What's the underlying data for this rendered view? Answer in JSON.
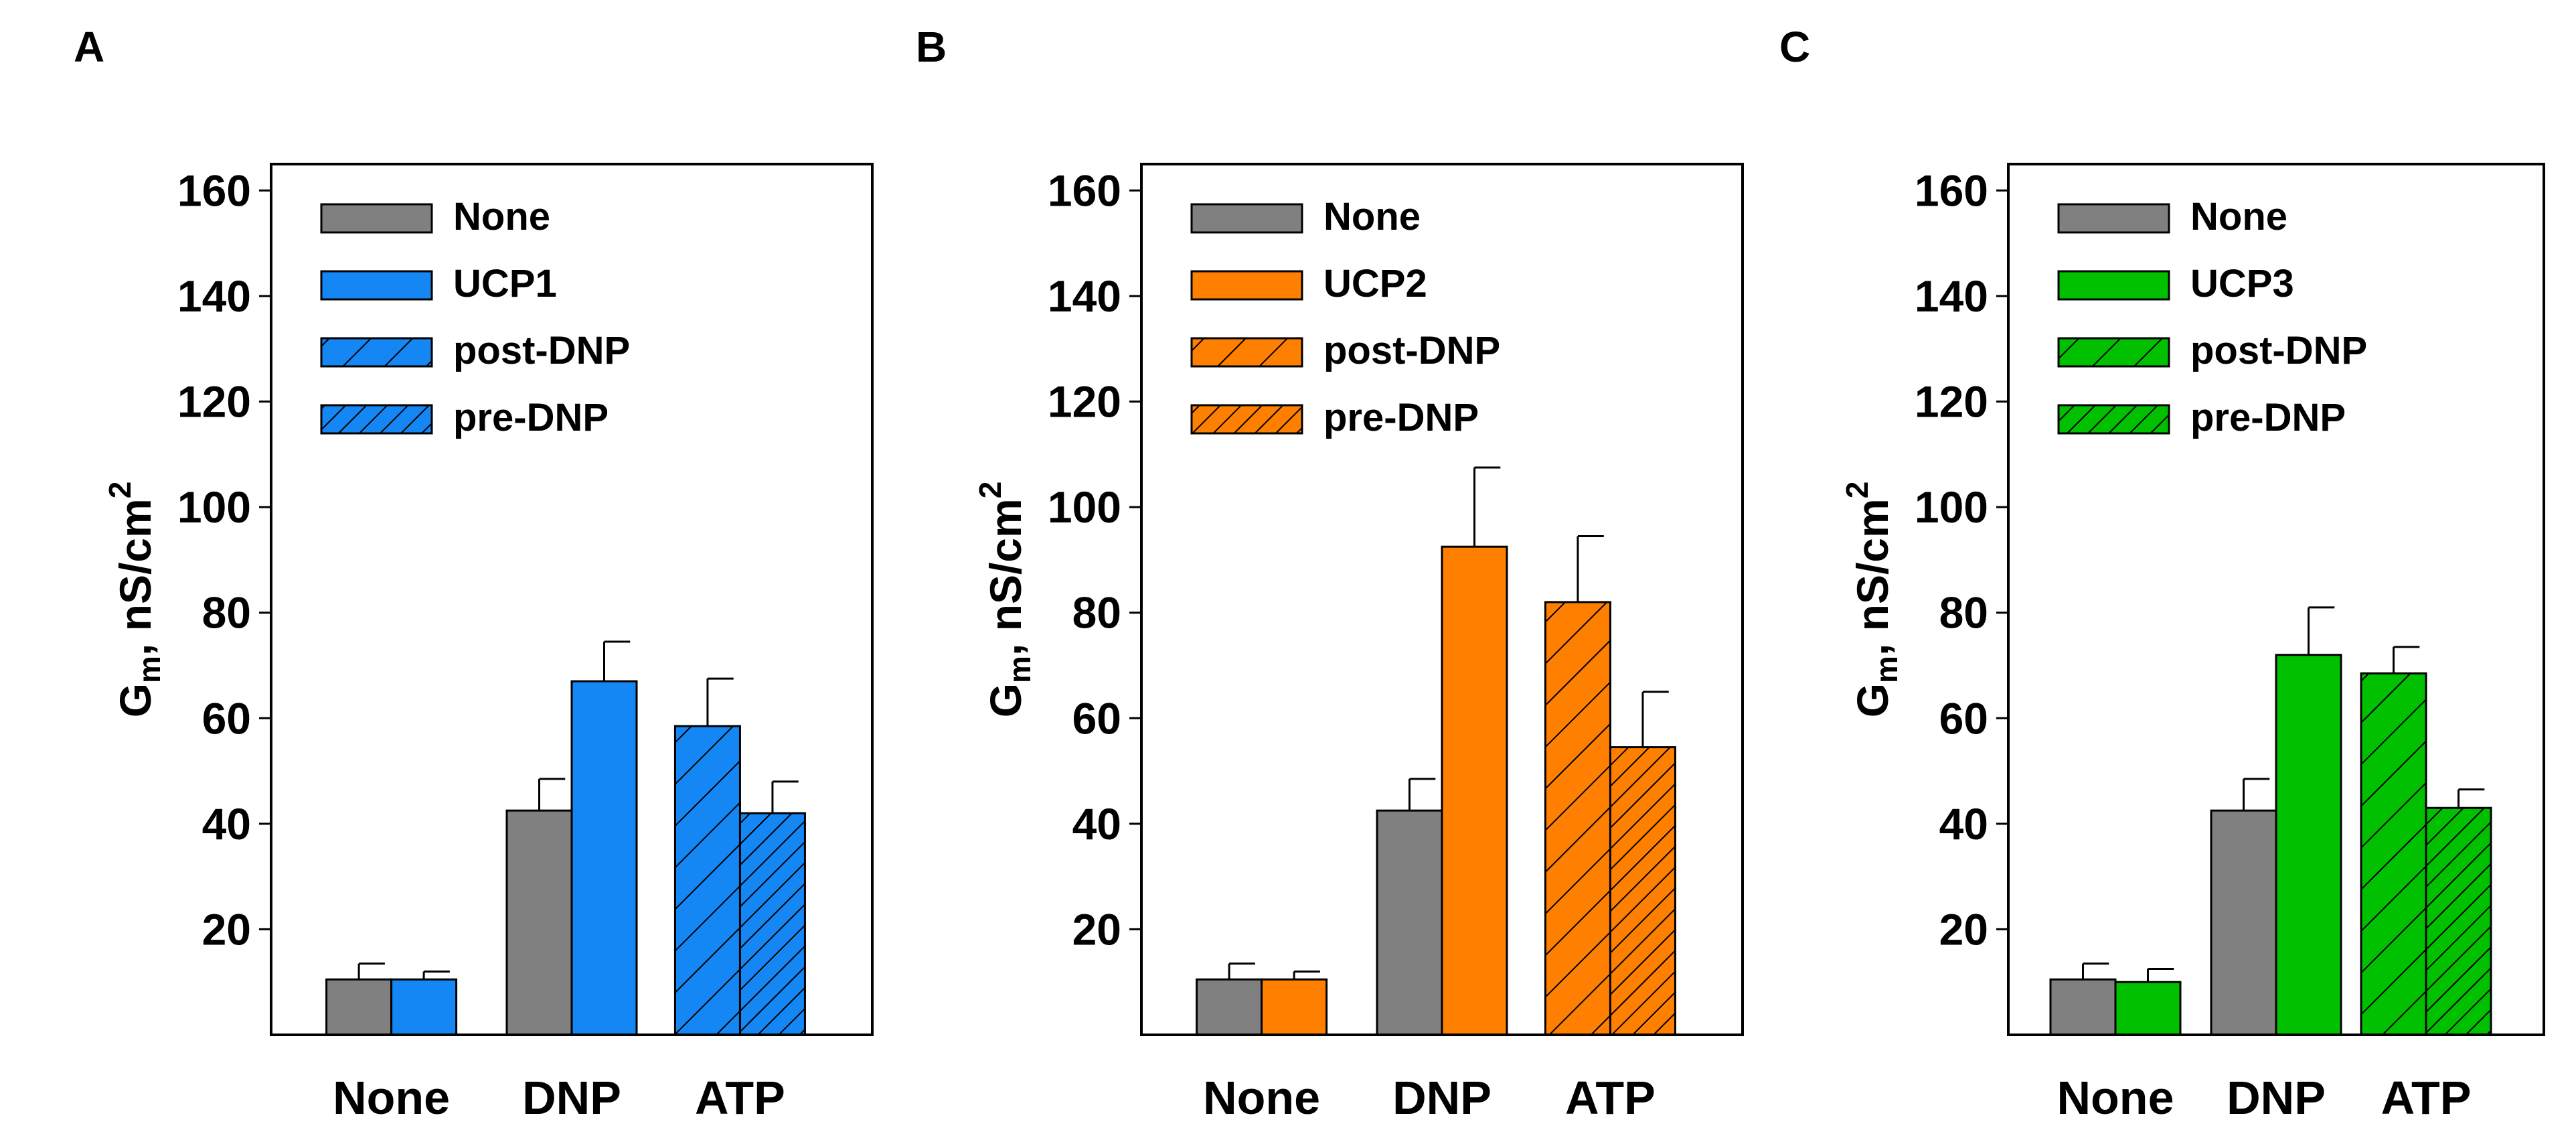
{
  "chart_data": [
    {
      "type": "bar",
      "panel": "A",
      "accent": "#1487f5",
      "title": "",
      "xlabel": "",
      "ylabel": {
        "main": "G",
        "sub": "m",
        "rest": ", nS/cm",
        "sup": "2"
      },
      "yticks": [
        20,
        40,
        60,
        80,
        100,
        120,
        140,
        160
      ],
      "ylim": [
        0,
        165
      ],
      "categories": [
        "None",
        "DNP",
        "ATP"
      ],
      "legend": [
        {
          "label": "None",
          "pattern": "solid",
          "color": "#808080"
        },
        {
          "label": "UCP1",
          "pattern": "solid",
          "color": "#1487f5"
        },
        {
          "label": "post-DNP",
          "pattern": "sparse-hatch",
          "color": "#1487f5"
        },
        {
          "label": "pre-DNP",
          "pattern": "dense-hatch",
          "color": "#1487f5"
        }
      ],
      "bars": [
        {
          "category": "None",
          "series": "None",
          "value": 10.5,
          "error": 3,
          "pattern": "solid",
          "color": "#808080"
        },
        {
          "category": "None",
          "series": "UCP1",
          "value": 10.5,
          "error": 1.5,
          "pattern": "solid",
          "color": "#1487f5"
        },
        {
          "category": "DNP",
          "series": "None",
          "value": 42.5,
          "error": 6,
          "pattern": "solid",
          "color": "#808080"
        },
        {
          "category": "DNP",
          "series": "UCP1",
          "value": 67,
          "error": 7.5,
          "pattern": "solid",
          "color": "#1487f5"
        },
        {
          "category": "ATP",
          "series": "post-DNP",
          "value": 58.5,
          "error": 9,
          "pattern": "sparse-hatch",
          "color": "#1487f5"
        },
        {
          "category": "ATP",
          "series": "pre-DNP",
          "value": 42,
          "error": 6,
          "pattern": "dense-hatch",
          "color": "#1487f5"
        }
      ]
    },
    {
      "type": "bar",
      "panel": "B",
      "accent": "#ff8000",
      "title": "",
      "xlabel": "",
      "ylabel": {
        "main": "G",
        "sub": "m",
        "rest": ", nS/cm",
        "sup": "2"
      },
      "yticks": [
        20,
        40,
        60,
        80,
        100,
        120,
        140,
        160
      ],
      "ylim": [
        0,
        165
      ],
      "categories": [
        "None",
        "DNP",
        "ATP"
      ],
      "legend": [
        {
          "label": "None",
          "pattern": "solid",
          "color": "#808080"
        },
        {
          "label": "UCP2",
          "pattern": "solid",
          "color": "#ff8000"
        },
        {
          "label": "post-DNP",
          "pattern": "sparse-hatch",
          "color": "#ff8000"
        },
        {
          "label": "pre-DNP",
          "pattern": "dense-hatch",
          "color": "#ff8000"
        }
      ],
      "bars": [
        {
          "category": "None",
          "series": "None",
          "value": 10.5,
          "error": 3,
          "pattern": "solid",
          "color": "#808080"
        },
        {
          "category": "None",
          "series": "UCP2",
          "value": 10.5,
          "error": 1.5,
          "pattern": "solid",
          "color": "#ff8000"
        },
        {
          "category": "DNP",
          "series": "None",
          "value": 42.5,
          "error": 6,
          "pattern": "solid",
          "color": "#808080"
        },
        {
          "category": "DNP",
          "series": "UCP2",
          "value": 92.5,
          "error": 15,
          "pattern": "solid",
          "color": "#ff8000"
        },
        {
          "category": "ATP",
          "series": "post-DNP",
          "value": 82,
          "error": 12.5,
          "pattern": "sparse-hatch",
          "color": "#ff8000"
        },
        {
          "category": "ATP",
          "series": "pre-DNP",
          "value": 54.5,
          "error": 10.5,
          "pattern": "dense-hatch",
          "color": "#ff8000"
        }
      ]
    },
    {
      "type": "bar",
      "panel": "C",
      "accent": "#00c000",
      "title": "",
      "xlabel": "",
      "ylabel": {
        "main": "G",
        "sub": "m",
        "rest": ", nS/cm",
        "sup": "2"
      },
      "yticks": [
        20,
        40,
        60,
        80,
        100,
        120,
        140,
        160
      ],
      "ylim": [
        0,
        165
      ],
      "categories": [
        "None",
        "DNP",
        "ATP"
      ],
      "legend": [
        {
          "label": "None",
          "pattern": "solid",
          "color": "#808080"
        },
        {
          "label": "UCP3",
          "pattern": "solid",
          "color": "#00c000"
        },
        {
          "label": "post-DNP",
          "pattern": "sparse-hatch",
          "color": "#00c000"
        },
        {
          "label": "pre-DNP",
          "pattern": "dense-hatch",
          "color": "#00c000"
        }
      ],
      "bars": [
        {
          "category": "None",
          "series": "None",
          "value": 10.5,
          "error": 3,
          "pattern": "solid",
          "color": "#808080"
        },
        {
          "category": "None",
          "series": "UCP3",
          "value": 10,
          "error": 2.5,
          "pattern": "solid",
          "color": "#00c000"
        },
        {
          "category": "DNP",
          "series": "None",
          "value": 42.5,
          "error": 6,
          "pattern": "solid",
          "color": "#808080"
        },
        {
          "category": "DNP",
          "series": "UCP3",
          "value": 72,
          "error": 9,
          "pattern": "solid",
          "color": "#00c000"
        },
        {
          "category": "ATP",
          "series": "post-DNP",
          "value": 68.5,
          "error": 5,
          "pattern": "sparse-hatch",
          "color": "#00c000"
        },
        {
          "category": "ATP",
          "series": "pre-DNP",
          "value": 43,
          "error": 3.5,
          "pattern": "dense-hatch",
          "color": "#00c000"
        }
      ]
    }
  ]
}
